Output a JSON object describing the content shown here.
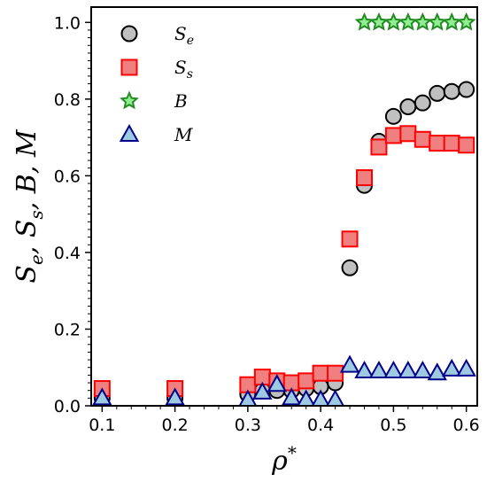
{
  "chart_data": {
    "type": "scatter",
    "title": "",
    "xlabel": "ρ*",
    "ylabel": "Se, Ss, B, M",
    "xlim": [
      0.085,
      0.615
    ],
    "ylim": [
      0.0,
      1.04
    ],
    "x_ticks": [
      "0.1",
      "0.2",
      "0.3",
      "0.4",
      "0.5",
      "0.6"
    ],
    "y_ticks": [
      "0.0",
      "0.2",
      "0.4",
      "0.6",
      "0.8",
      "1.0"
    ],
    "grid": false,
    "legend_position": "top-left",
    "series": [
      {
        "name": "Se",
        "marker": "circle",
        "fill": "#c0c0c0",
        "stroke": "#000000",
        "x": [
          0.1,
          0.2,
          0.3,
          0.32,
          0.34,
          0.36,
          0.38,
          0.4,
          0.42,
          0.44,
          0.46,
          0.48,
          0.5,
          0.52,
          0.54,
          0.56,
          0.58,
          0.6
        ],
        "y": [
          0.02,
          0.02,
          0.03,
          0.04,
          0.04,
          0.04,
          0.045,
          0.05,
          0.06,
          0.36,
          0.575,
          0.69,
          0.755,
          0.78,
          0.79,
          0.815,
          0.82,
          0.825
        ]
      },
      {
        "name": "Ss",
        "marker": "square",
        "fill": "#f08080",
        "stroke": "#ff0000",
        "x": [
          0.1,
          0.2,
          0.3,
          0.32,
          0.34,
          0.36,
          0.38,
          0.4,
          0.42,
          0.44,
          0.46,
          0.48,
          0.5,
          0.52,
          0.54,
          0.56,
          0.58,
          0.6
        ],
        "y": [
          0.045,
          0.045,
          0.055,
          0.075,
          0.065,
          0.06,
          0.065,
          0.085,
          0.085,
          0.435,
          0.595,
          0.675,
          0.705,
          0.71,
          0.695,
          0.685,
          0.685,
          0.68
        ]
      },
      {
        "name": "B",
        "marker": "star",
        "fill": "#90ee90",
        "stroke": "#228b22",
        "x": [
          0.46,
          0.48,
          0.5,
          0.52,
          0.54,
          0.56,
          0.58,
          0.6
        ],
        "y": [
          1.0,
          1.0,
          1.0,
          1.0,
          1.0,
          1.0,
          1.0,
          1.0
        ]
      },
      {
        "name": "M",
        "marker": "triangle",
        "fill": "#9ecae1",
        "stroke": "#00008b",
        "x": [
          0.1,
          0.2,
          0.3,
          0.32,
          0.34,
          0.36,
          0.38,
          0.4,
          0.42,
          0.44,
          0.46,
          0.48,
          0.5,
          0.52,
          0.54,
          0.56,
          0.58,
          0.6
        ],
        "y": [
          0.02,
          0.02,
          0.015,
          0.035,
          0.055,
          0.02,
          0.015,
          0.015,
          0.015,
          0.105,
          0.09,
          0.09,
          0.09,
          0.09,
          0.09,
          0.085,
          0.095,
          0.095
        ]
      }
    ]
  }
}
